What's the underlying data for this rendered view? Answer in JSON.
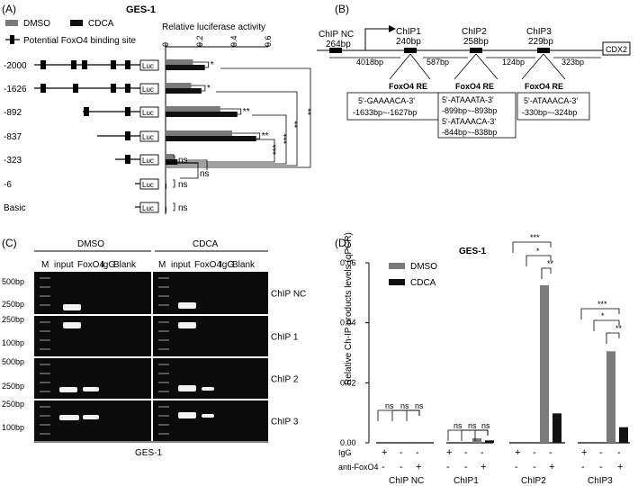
{
  "panel_A": {
    "panel_label": "(A)",
    "title": "GES-1",
    "legend": {
      "dmso": "DMSO",
      "cdca": "CDCA",
      "binding_site": "Potential FoxO4 binding site"
    },
    "axis_label": "Relative luciferase activity",
    "axis_ticks": [
      "0",
      "0.2",
      "0.4",
      "0.6"
    ],
    "luc_label": "Luc",
    "constructs": [
      {
        "name": "-2000",
        "boxes": 5,
        "sig": "*"
      },
      {
        "name": "-1626",
        "boxes": 4,
        "sig": "*"
      },
      {
        "name": "-892",
        "boxes": 2,
        "sig": "**"
      },
      {
        "name": "-837",
        "boxes": 1,
        "sig": "**"
      },
      {
        "name": "-323",
        "boxes": 1,
        "sig": "ns"
      },
      {
        "name": "-6",
        "boxes": 0,
        "sig": "ns"
      },
      {
        "name": "Basic",
        "boxes": 0,
        "sig": "ns"
      }
    ],
    "bracket_labels": {
      "ns_6_323": "ns",
      "b837": "***",
      "b892": "***",
      "b1626": "**",
      "b2000": "**"
    },
    "colors": {
      "dmso": "#7a7a7a",
      "cdca": "#111111"
    }
  },
  "chart_data": {
    "type": "bar",
    "title": "GES-1",
    "xlabel": "Relative luciferase activity",
    "orientation": "horizontal",
    "xlim": [
      0,
      0.6
    ],
    "categories": [
      "-2000",
      "-1626",
      "-892",
      "-837",
      "-323",
      "-6",
      "Basic"
    ],
    "series": [
      {
        "name": "DMSO",
        "values": [
          0.16,
          0.15,
          0.32,
          0.39,
          0.05,
          0.004,
          0.003
        ]
      },
      {
        "name": "CDCA",
        "values": [
          0.23,
          0.21,
          0.42,
          0.53,
          0.07,
          0.005,
          0.004
        ]
      }
    ]
  },
  "panel_B": {
    "panel_label": "(B)",
    "chip_nc": "ChIP NC",
    "chip_nc_bp": "264bp",
    "chip1": "ChIP1",
    "chip1_bp": "240bp",
    "chip2": "ChIP2",
    "chip2_bp": "258bp",
    "chip3": "ChIP3",
    "chip3_bp": "229bp",
    "gene": "CDX2",
    "dist1": "4018bp",
    "dist2": "587bp",
    "dist3": "124bp",
    "dist4": "323bp",
    "re_title": "FoxO4 RE",
    "re1_seq": "5'-GAAAACA-3'",
    "re1_pos": "-1633bp~-1627bp",
    "re2_seq1": "5'-ATAAATA-3'",
    "re2_pos1": "-899bp~-893bp",
    "re2_seq2": "5'-ATAAACA-3'",
    "re2_pos2": "-844bp~-838bp",
    "re3_seq": "5'-ATAAACA-3'",
    "re3_pos": "-330bp~-324bp"
  },
  "panel_C": {
    "panel_label": "(C)",
    "dmso": "DMSO",
    "cdca": "CDCA",
    "lanes": [
      "M",
      "input",
      "FoxO4",
      "IgG",
      "Blank",
      "M",
      "input",
      "FoxO4",
      "IgG",
      "Blank"
    ],
    "bp_labels": [
      "500bp",
      "250bp",
      "250bp",
      "100bp",
      "500bp",
      "250bp",
      "250bp",
      "100bp"
    ],
    "rows": [
      "ChIP NC",
      "ChIP 1",
      "ChIP 2",
      "ChIP 3"
    ],
    "footer": "GES-1"
  },
  "panel_D": {
    "panel_label": "(D)",
    "title": "GES-1",
    "ylabel": "Relative Ch-IP products levels (qPCR)",
    "yticks": [
      "0.00",
      "0.02",
      "0.04",
      "0.06"
    ],
    "legend_dmso": "DMSO",
    "legend_cdca": "CDCA",
    "groups": [
      "ChIP NC",
      "ChIP1",
      "ChIP2",
      "ChIP3"
    ],
    "row1_label": "IgG",
    "row2_label": "anti-FoxO4",
    "signs_igg": [
      "+",
      "-",
      "-",
      "+",
      "-",
      "-",
      "+",
      "-",
      "-",
      "+",
      "-",
      "-"
    ],
    "signs_anti": [
      "-",
      "-",
      "+",
      "-",
      "-",
      "+",
      "-",
      "-",
      "+",
      "-",
      "-",
      "+"
    ],
    "sig": {
      "nc1": "ns",
      "nc2": "ns",
      "nc3": "ns",
      "c11": "ns",
      "c12": "ns",
      "c13": "ns",
      "c21": "***",
      "c22": "*",
      "c23": "**",
      "c31": "***",
      "c32": "*",
      "c33": "**"
    },
    "chart_data": {
      "type": "bar",
      "ylim": [
        0,
        0.06
      ],
      "categories": [
        "ChIP NC IgG",
        "ChIP NC anti-FoxO4",
        "ChIP1 IgG",
        "ChIP1 anti-FoxO4",
        "ChIP2 IgG",
        "ChIP2 anti-FoxO4",
        "ChIP3 IgG",
        "ChIP3 anti-FoxO4"
      ],
      "series": [
        {
          "name": "DMSO",
          "values": [
            0,
            0,
            0,
            0.0015,
            0,
            0.0525,
            0,
            0.0305
          ]
        },
        {
          "name": "CDCA",
          "values": [
            0,
            0,
            0,
            0.0008,
            0,
            0.0098,
            0,
            0.0052
          ]
        }
      ]
    }
  }
}
